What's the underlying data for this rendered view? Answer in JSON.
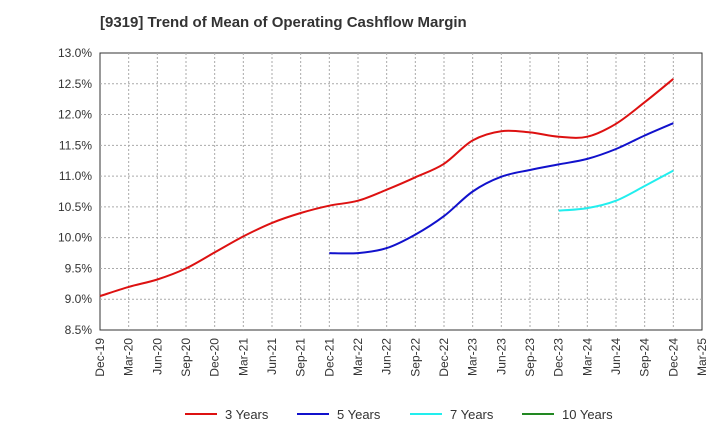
{
  "chart_data": {
    "type": "line",
    "title": "[9319]  Trend of Mean of Operating Cashflow Margin",
    "xlabel": "",
    "ylabel": "",
    "x": [
      "Dec-19",
      "Mar-20",
      "Jun-20",
      "Sep-20",
      "Dec-20",
      "Mar-21",
      "Jun-21",
      "Sep-21",
      "Dec-21",
      "Mar-22",
      "Jun-22",
      "Sep-22",
      "Dec-22",
      "Mar-23",
      "Jun-23",
      "Sep-23",
      "Dec-23",
      "Mar-24",
      "Jun-24",
      "Sep-24",
      "Dec-24",
      "Mar-25"
    ],
    "ylim": [
      8.5,
      13.0
    ],
    "yticks": [
      "8.5%",
      "9.0%",
      "9.5%",
      "10.0%",
      "10.5%",
      "11.0%",
      "11.5%",
      "12.0%",
      "12.5%",
      "13.0%"
    ],
    "grid": true,
    "legend_position": "bottom",
    "series": [
      {
        "name": "3 Years",
        "color": "#dd1111",
        "values": [
          9.05,
          9.2,
          9.32,
          9.5,
          9.76,
          10.02,
          10.24,
          10.4,
          10.52,
          10.6,
          10.78,
          10.98,
          11.2,
          11.58,
          11.73,
          11.71,
          11.64,
          11.64,
          11.85,
          12.2,
          12.58,
          null
        ]
      },
      {
        "name": "5 Years",
        "color": "#1111cc",
        "values": [
          null,
          null,
          null,
          null,
          null,
          null,
          null,
          null,
          9.75,
          9.75,
          9.83,
          10.05,
          10.35,
          10.75,
          10.99,
          11.1,
          11.19,
          11.28,
          11.44,
          11.66,
          11.86,
          null
        ]
      },
      {
        "name": "7 Years",
        "color": "#22eeee",
        "values": [
          null,
          null,
          null,
          null,
          null,
          null,
          null,
          null,
          null,
          null,
          null,
          null,
          null,
          null,
          null,
          null,
          10.44,
          10.48,
          10.6,
          10.84,
          11.09,
          null
        ]
      },
      {
        "name": "10 Years",
        "color": "#228822",
        "values": [
          null,
          null,
          null,
          null,
          null,
          null,
          null,
          null,
          null,
          null,
          null,
          null,
          null,
          null,
          null,
          null,
          null,
          null,
          null,
          null,
          null,
          null
        ]
      }
    ]
  }
}
